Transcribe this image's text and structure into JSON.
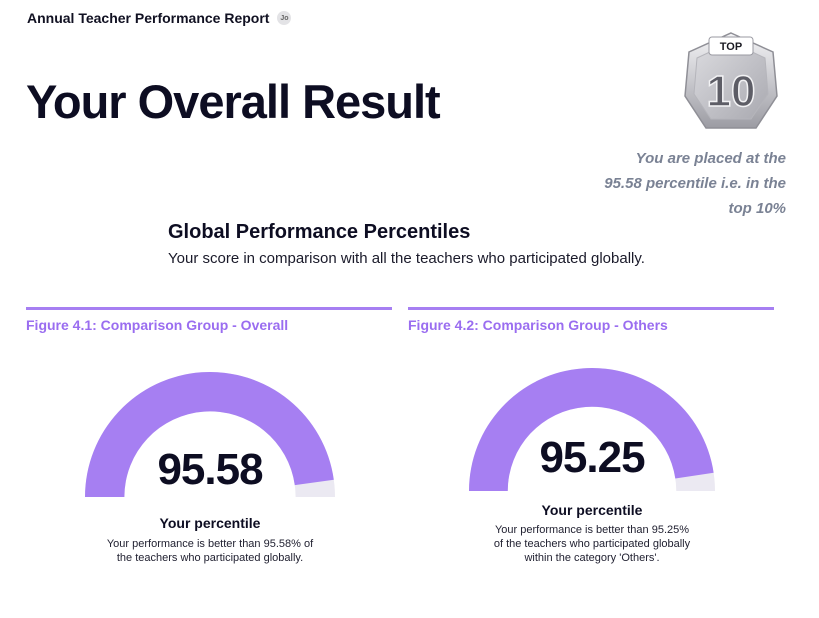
{
  "header": {
    "report_title": "Annual Teacher Performance Report",
    "logo_text": "Jo"
  },
  "page_title": "Your Overall Result",
  "badge": {
    "top_label": "TOP",
    "rank": "10"
  },
  "placement_note": "You are placed at the 95.58 percentile i.e. in the top 10%",
  "section": {
    "title": "Global Performance Percentiles",
    "subtitle": "Your score in comparison with all the teachers who participated globally."
  },
  "figures": [
    {
      "caption": "Figure 4.1: Comparison Group - Overall",
      "value_text": "95.58",
      "label": "Your percentile",
      "desc_lines": [
        "Your performance is better than 95.58% of",
        "the teachers who participated globally."
      ]
    },
    {
      "caption": "Figure 4.2: Comparison Group - Others",
      "value_text": "95.25",
      "label": "Your percentile",
      "desc_lines": [
        "Your performance is better than 95.25%",
        "of the teachers who participated globally",
        "within the category 'Others'."
      ]
    }
  ],
  "chart_data": [
    {
      "type": "gauge",
      "value": 95.58,
      "range": [
        0,
        100
      ]
    },
    {
      "type": "gauge",
      "value": 95.25,
      "range": [
        0,
        100
      ]
    }
  ],
  "colors": {
    "accent": "#a67ff2",
    "track": "#ebe9f2",
    "note": "#7a8294"
  }
}
